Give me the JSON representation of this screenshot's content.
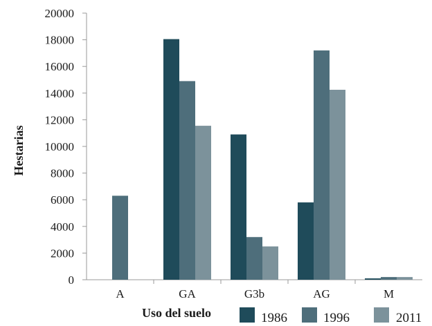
{
  "chart_data": {
    "type": "bar",
    "categories": [
      "A",
      "GA",
      "G3b",
      "AG",
      "M"
    ],
    "series": [
      {
        "name": "1986",
        "values": [
          0,
          18050,
          10900,
          5800,
          100
        ],
        "color": "#1f4b5a"
      },
      {
        "name": "1996",
        "values": [
          6300,
          14900,
          3200,
          17200,
          200
        ],
        "color": "#4e6e7b"
      },
      {
        "name": "2011",
        "values": [
          0,
          11550,
          2500,
          14250,
          200
        ],
        "color": "#7c929b"
      }
    ],
    "yticks": [
      "0",
      "2000",
      "4000",
      "6000",
      "8000",
      "10000",
      "12000",
      "14000",
      "16000",
      "18000",
      "20000"
    ],
    "ylim": [
      0,
      20000
    ],
    "xlabel": "Uso del suelo",
    "ylabel": "Hestarias",
    "legend_position": "bottom",
    "grid": false
  }
}
